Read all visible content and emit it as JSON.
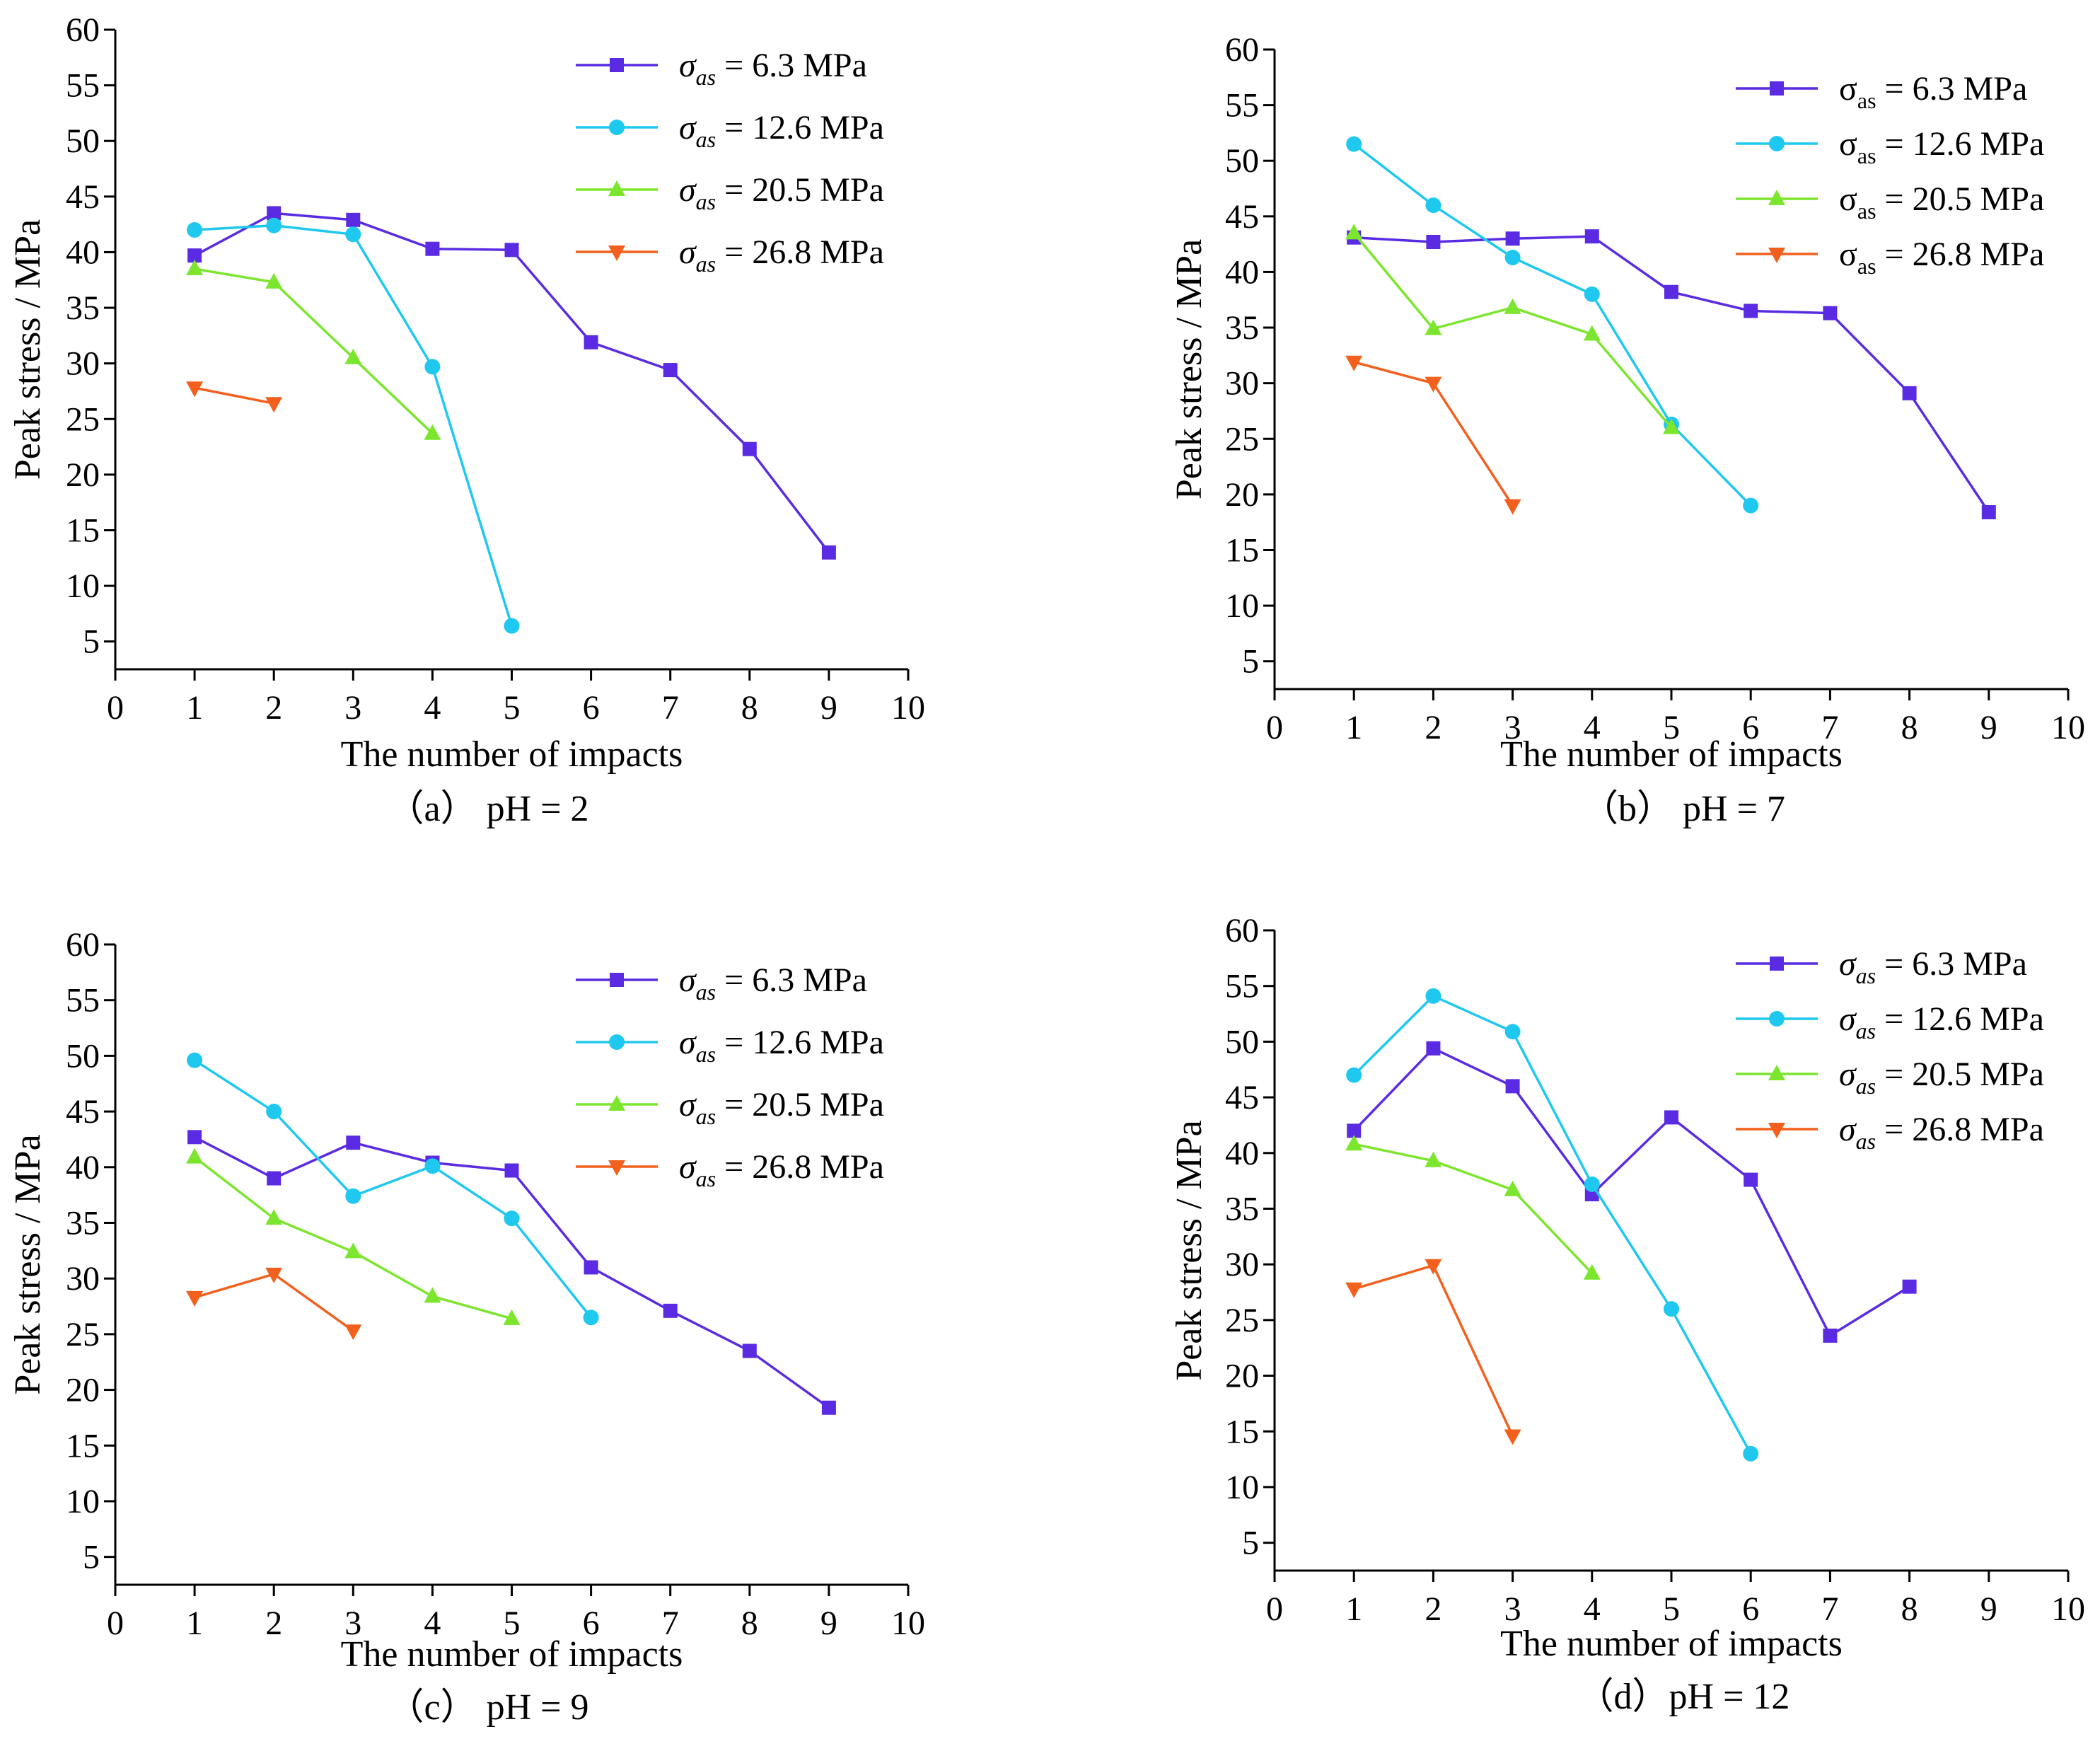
{
  "figure": {
    "legend_symbol": "σ",
    "legend_unit": "MPa",
    "colors": {
      "s63": "#5a2be2",
      "s126": "#1ec8ee",
      "s205": "#7ce52e",
      "s268": "#f2601e"
    }
  },
  "chart_data": [
    {
      "type": "line",
      "caption": "（a） pH = 2",
      "xlabel": "The number of impacts",
      "ylabel": "Peak stress / MPa",
      "xlim": [
        0,
        10
      ],
      "ylim": [
        2.5,
        60
      ],
      "xticks": [
        0,
        1,
        2,
        3,
        4,
        5,
        6,
        7,
        8,
        9,
        10
      ],
      "yticks": [
        5,
        10,
        15,
        20,
        25,
        30,
        35,
        40,
        45,
        50,
        55,
        60
      ],
      "legend_italic": true,
      "series": [
        {
          "name": "6.3",
          "subscript": "as",
          "color": "#5a2be2",
          "marker": "square",
          "x": [
            1,
            2,
            3,
            4,
            5,
            6,
            7,
            8,
            9
          ],
          "y": [
            39.7,
            43.5,
            42.9,
            40.3,
            40.2,
            31.9,
            29.4,
            22.3,
            13.0
          ]
        },
        {
          "name": "12.6",
          "subscript": "as",
          "color": "#1ec8ee",
          "marker": "circle",
          "x": [
            1,
            2,
            3,
            4,
            5
          ],
          "y": [
            42.0,
            42.4,
            41.6,
            29.7,
            6.4
          ]
        },
        {
          "name": "20.5",
          "subscript": "as",
          "color": "#7ce52e",
          "marker": "triangle",
          "x": [
            1,
            2,
            3,
            4
          ],
          "y": [
            38.5,
            37.3,
            30.5,
            23.7
          ]
        },
        {
          "name": "26.8",
          "subscript": "as",
          "color": "#f2601e",
          "marker": "triangle-down",
          "x": [
            1,
            2
          ],
          "y": [
            27.8,
            26.4
          ]
        }
      ]
    },
    {
      "type": "line",
      "caption": "（b） pH = 7",
      "xlabel": "The number of impacts",
      "ylabel": "Peak stress / MPa",
      "xlim": [
        0,
        10
      ],
      "ylim": [
        2.5,
        60
      ],
      "xticks": [
        0,
        1,
        2,
        3,
        4,
        5,
        6,
        7,
        8,
        9,
        10
      ],
      "yticks": [
        5,
        10,
        15,
        20,
        25,
        30,
        35,
        40,
        45,
        50,
        55,
        60
      ],
      "legend_italic": false,
      "series": [
        {
          "name": "6.3",
          "subscript": "as",
          "color": "#5a2be2",
          "marker": "square",
          "x": [
            1,
            2,
            3,
            4,
            5,
            6,
            7,
            8,
            9
          ],
          "y": [
            43.1,
            42.7,
            43.0,
            43.2,
            38.2,
            36.5,
            36.3,
            29.1,
            18.4
          ]
        },
        {
          "name": "12.6",
          "subscript": "as",
          "color": "#1ec8ee",
          "marker": "circle",
          "x": [
            1,
            2,
            3,
            4,
            5,
            6
          ],
          "y": [
            51.5,
            46.0,
            41.3,
            38.0,
            26.3,
            19.0
          ]
        },
        {
          "name": "20.5",
          "subscript": "as",
          "color": "#7ce52e",
          "marker": "triangle",
          "x": [
            1,
            2,
            3,
            4,
            5
          ],
          "y": [
            43.5,
            34.9,
            36.8,
            34.4,
            26.0
          ]
        },
        {
          "name": "26.8",
          "subscript": "as",
          "color": "#f2601e",
          "marker": "triangle-down",
          "x": [
            1,
            2,
            3
          ],
          "y": [
            31.9,
            30.0,
            19.0
          ]
        }
      ]
    },
    {
      "type": "line",
      "caption": "（c） pH = 9",
      "xlabel": "The number of impacts",
      "ylabel": "Peak stress / MPa",
      "xlim": [
        0,
        10
      ],
      "ylim": [
        2.5,
        60
      ],
      "xticks": [
        0,
        1,
        2,
        3,
        4,
        5,
        6,
        7,
        8,
        9,
        10
      ],
      "yticks": [
        5,
        10,
        15,
        20,
        25,
        30,
        35,
        40,
        45,
        50,
        55,
        60
      ],
      "legend_italic": true,
      "series": [
        {
          "name": "6.3",
          "subscript": "as",
          "color": "#5a2be2",
          "marker": "square",
          "x": [
            1,
            2,
            3,
            4,
            5,
            6,
            7,
            8,
            9
          ],
          "y": [
            42.7,
            39.0,
            42.2,
            40.4,
            39.7,
            31.0,
            27.1,
            23.5,
            18.4
          ]
        },
        {
          "name": "12.6",
          "subscript": "as",
          "color": "#1ec8ee",
          "marker": "circle",
          "x": [
            1,
            2,
            3,
            4,
            5,
            6
          ],
          "y": [
            49.6,
            45.0,
            37.4,
            40.1,
            35.4,
            26.5
          ]
        },
        {
          "name": "20.5",
          "subscript": "as",
          "color": "#7ce52e",
          "marker": "triangle",
          "x": [
            1,
            2,
            3,
            4,
            5
          ],
          "y": [
            40.9,
            35.4,
            32.4,
            28.4,
            26.4
          ]
        },
        {
          "name": "26.8",
          "subscript": "as",
          "color": "#f2601e",
          "marker": "triangle-down",
          "x": [
            1,
            2,
            3
          ],
          "y": [
            28.3,
            30.4,
            25.3
          ]
        }
      ]
    },
    {
      "type": "line",
      "caption": "（d）pH = 12",
      "xlabel": "The number of impacts",
      "ylabel": "Peak stress / MPa",
      "xlim": [
        0,
        10
      ],
      "ylim": [
        2.5,
        60
      ],
      "xticks": [
        0,
        1,
        2,
        3,
        4,
        5,
        6,
        7,
        8,
        9,
        10
      ],
      "yticks": [
        5,
        10,
        15,
        20,
        25,
        30,
        35,
        40,
        45,
        50,
        55,
        60
      ],
      "legend_italic": true,
      "series": [
        {
          "name": "6.3",
          "subscript": "as",
          "color": "#5a2be2",
          "marker": "square",
          "x": [
            1,
            2,
            3,
            4,
            5,
            6,
            7,
            8
          ],
          "y": [
            42.0,
            49.4,
            46.0,
            36.3,
            43.2,
            37.6,
            23.6,
            28.0
          ]
        },
        {
          "name": "12.6",
          "subscript": "as",
          "color": "#1ec8ee",
          "marker": "circle",
          "x": [
            1,
            2,
            3,
            4,
            5,
            6
          ],
          "y": [
            47.0,
            54.1,
            50.9,
            37.2,
            26.0,
            13.0
          ]
        },
        {
          "name": "20.5",
          "subscript": "as",
          "color": "#7ce52e",
          "marker": "triangle",
          "x": [
            1,
            2,
            3,
            4
          ],
          "y": [
            40.8,
            39.3,
            36.7,
            29.2
          ]
        },
        {
          "name": "26.8",
          "subscript": "as",
          "color": "#f2601e",
          "marker": "triangle-down",
          "x": [
            1,
            2,
            3
          ],
          "y": [
            27.8,
            29.9,
            14.6
          ]
        }
      ]
    }
  ]
}
